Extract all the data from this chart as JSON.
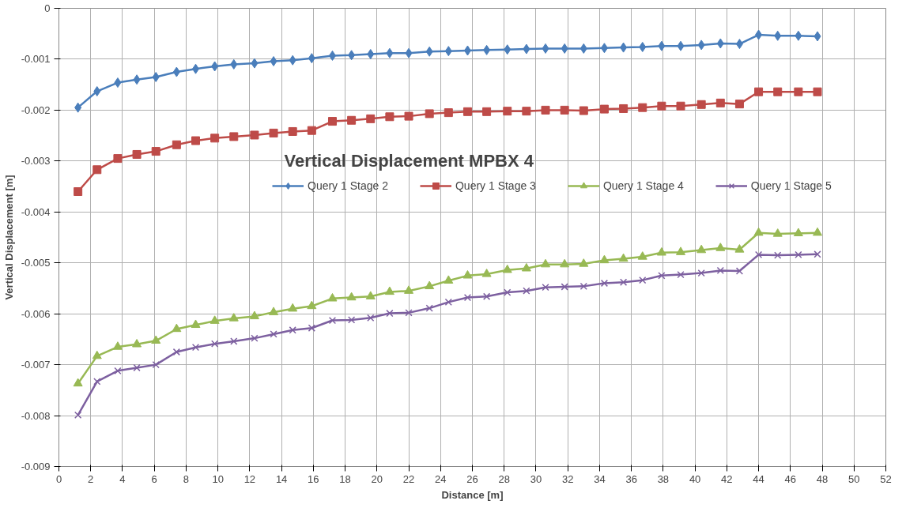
{
  "chart_data": {
    "type": "line",
    "title": "Vertical Displacement MPBX 4",
    "xlabel": "Distance [m]",
    "ylabel": "Vertical Displacement [m]",
    "x": [
      1.2,
      2.4,
      3.7,
      4.9,
      6.1,
      7.4,
      8.6,
      9.8,
      11.0,
      12.3,
      13.5,
      14.7,
      15.9,
      17.2,
      18.4,
      19.6,
      20.8,
      22.0,
      23.3,
      24.5,
      25.7,
      26.9,
      28.2,
      29.4,
      30.6,
      31.8,
      33.0,
      34.3,
      35.5,
      36.7,
      37.9,
      39.1,
      40.4,
      41.6,
      42.8,
      44.0,
      45.2,
      46.5,
      47.7
    ],
    "series": [
      {
        "name": "Query 1 Stage 2",
        "color": "#4a7ebb",
        "marker": "diamond",
        "values": [
          -0.00195,
          -0.00163,
          -0.00146,
          -0.0014,
          -0.00135,
          -0.00125,
          -0.00119,
          -0.00114,
          -0.0011,
          -0.00108,
          -0.00104,
          -0.00102,
          -0.00098,
          -0.00093,
          -0.00092,
          -0.0009,
          -0.00088,
          -0.00088,
          -0.00085,
          -0.00084,
          -0.00083,
          -0.00082,
          -0.00081,
          -0.0008,
          -0.00079,
          -0.00079,
          -0.00079,
          -0.00078,
          -0.00077,
          -0.00076,
          -0.00074,
          -0.00074,
          -0.00072,
          -0.00069,
          -0.0007,
          -0.00052,
          -0.00054,
          -0.00054,
          -0.00055
        ]
      },
      {
        "name": "Query 1 Stage 3",
        "color": "#be4b48",
        "marker": "square",
        "values": [
          -0.0036,
          -0.00317,
          -0.00295,
          -0.00287,
          -0.00281,
          -0.00268,
          -0.0026,
          -0.00255,
          -0.00252,
          -0.00249,
          -0.00245,
          -0.00242,
          -0.0024,
          -0.00222,
          -0.0022,
          -0.00217,
          -0.00213,
          -0.00212,
          -0.00207,
          -0.00205,
          -0.00203,
          -0.00203,
          -0.00202,
          -0.00202,
          -0.002,
          -0.002,
          -0.00201,
          -0.00198,
          -0.00197,
          -0.00195,
          -0.00192,
          -0.00192,
          -0.00189,
          -0.00186,
          -0.00188,
          -0.00164,
          -0.00164,
          -0.00164,
          -0.00164
        ]
      },
      {
        "name": "Query 1 Stage 4",
        "color": "#98b954",
        "marker": "triangle",
        "values": [
          -0.00737,
          -0.00683,
          -0.00665,
          -0.0066,
          -0.00653,
          -0.0063,
          -0.00622,
          -0.00614,
          -0.00609,
          -0.00605,
          -0.00597,
          -0.0059,
          -0.00585,
          -0.0057,
          -0.00568,
          -0.00566,
          -0.00557,
          -0.00555,
          -0.00546,
          -0.00535,
          -0.00525,
          -0.00522,
          -0.00514,
          -0.00511,
          -0.00503,
          -0.00503,
          -0.00502,
          -0.00495,
          -0.00492,
          -0.00488,
          -0.0048,
          -0.00479,
          -0.00475,
          -0.00471,
          -0.00474,
          -0.00441,
          -0.00443,
          -0.00442,
          -0.00441
        ]
      },
      {
        "name": "Query 1 Stage 5",
        "color": "#7d60a0",
        "marker": "x",
        "values": [
          -0.00799,
          -0.00733,
          -0.00712,
          -0.00706,
          -0.007,
          -0.00675,
          -0.00666,
          -0.00659,
          -0.00654,
          -0.00648,
          -0.0064,
          -0.00632,
          -0.00628,
          -0.00613,
          -0.00612,
          -0.00608,
          -0.00599,
          -0.00598,
          -0.00589,
          -0.00577,
          -0.00568,
          -0.00566,
          -0.00558,
          -0.00555,
          -0.00548,
          -0.00547,
          -0.00546,
          -0.0054,
          -0.00538,
          -0.00534,
          -0.00525,
          -0.00523,
          -0.0052,
          -0.00515,
          -0.00516,
          -0.00484,
          -0.00485,
          -0.00484,
          -0.00483
        ]
      }
    ],
    "xlim": [
      0,
      52
    ],
    "xticks": [
      0,
      2,
      4,
      6,
      8,
      10,
      12,
      14,
      16,
      18,
      20,
      22,
      24,
      26,
      28,
      30,
      32,
      34,
      36,
      38,
      40,
      42,
      44,
      46,
      48,
      50,
      52
    ],
    "ylim": [
      -0.009,
      0
    ],
    "yticks": [
      -0.009,
      -0.008,
      -0.007,
      -0.006,
      -0.005,
      -0.004,
      -0.003,
      -0.002,
      -0.001,
      0
    ],
    "grid": true,
    "legend": "center",
    "line_style": "solid"
  }
}
